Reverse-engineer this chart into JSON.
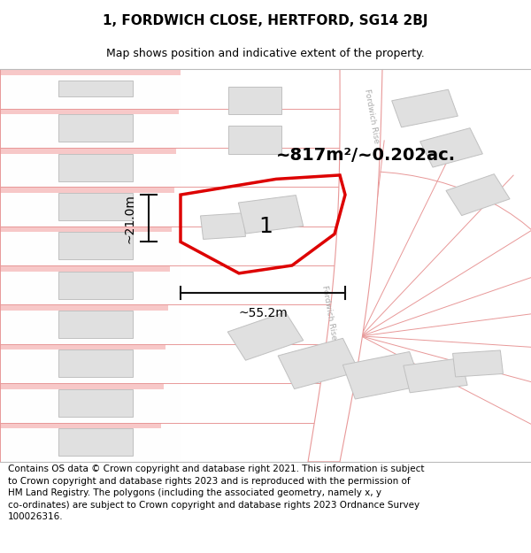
{
  "title_line1": "1, FORDWICH CLOSE, HERTFORD, SG14 2BJ",
  "title_line2": "Map shows position and indicative extent of the property.",
  "footer_text": "Contains OS data © Crown copyright and database right 2021. This information is subject\nto Crown copyright and database rights 2023 and is reproduced with the permission of\nHM Land Registry. The polygons (including the associated geometry, namely x, y\nco-ordinates) are subject to Crown copyright and database rights 2023 Ordnance Survey\n100026316.",
  "area_label": "~817m²/~0.202ac.",
  "width_label": "~55.2m",
  "height_label": "~21.0m",
  "plot_number": "1",
  "bg_color": "#ffffff",
  "road_color": "#f7c8c8",
  "road_stroke": "#e89898",
  "building_fill": "#e0e0e0",
  "building_stroke": "#c0c0c0",
  "highlight_color": "#dd0000",
  "dim_line_color": "#111111",
  "road_label_color": "#aaaaaa",
  "title_fontsize": 11,
  "subtitle_fontsize": 9,
  "footer_fontsize": 7.5,
  "area_fontsize": 14,
  "plot_label_fontsize": 18,
  "dim_fontsize": 10
}
